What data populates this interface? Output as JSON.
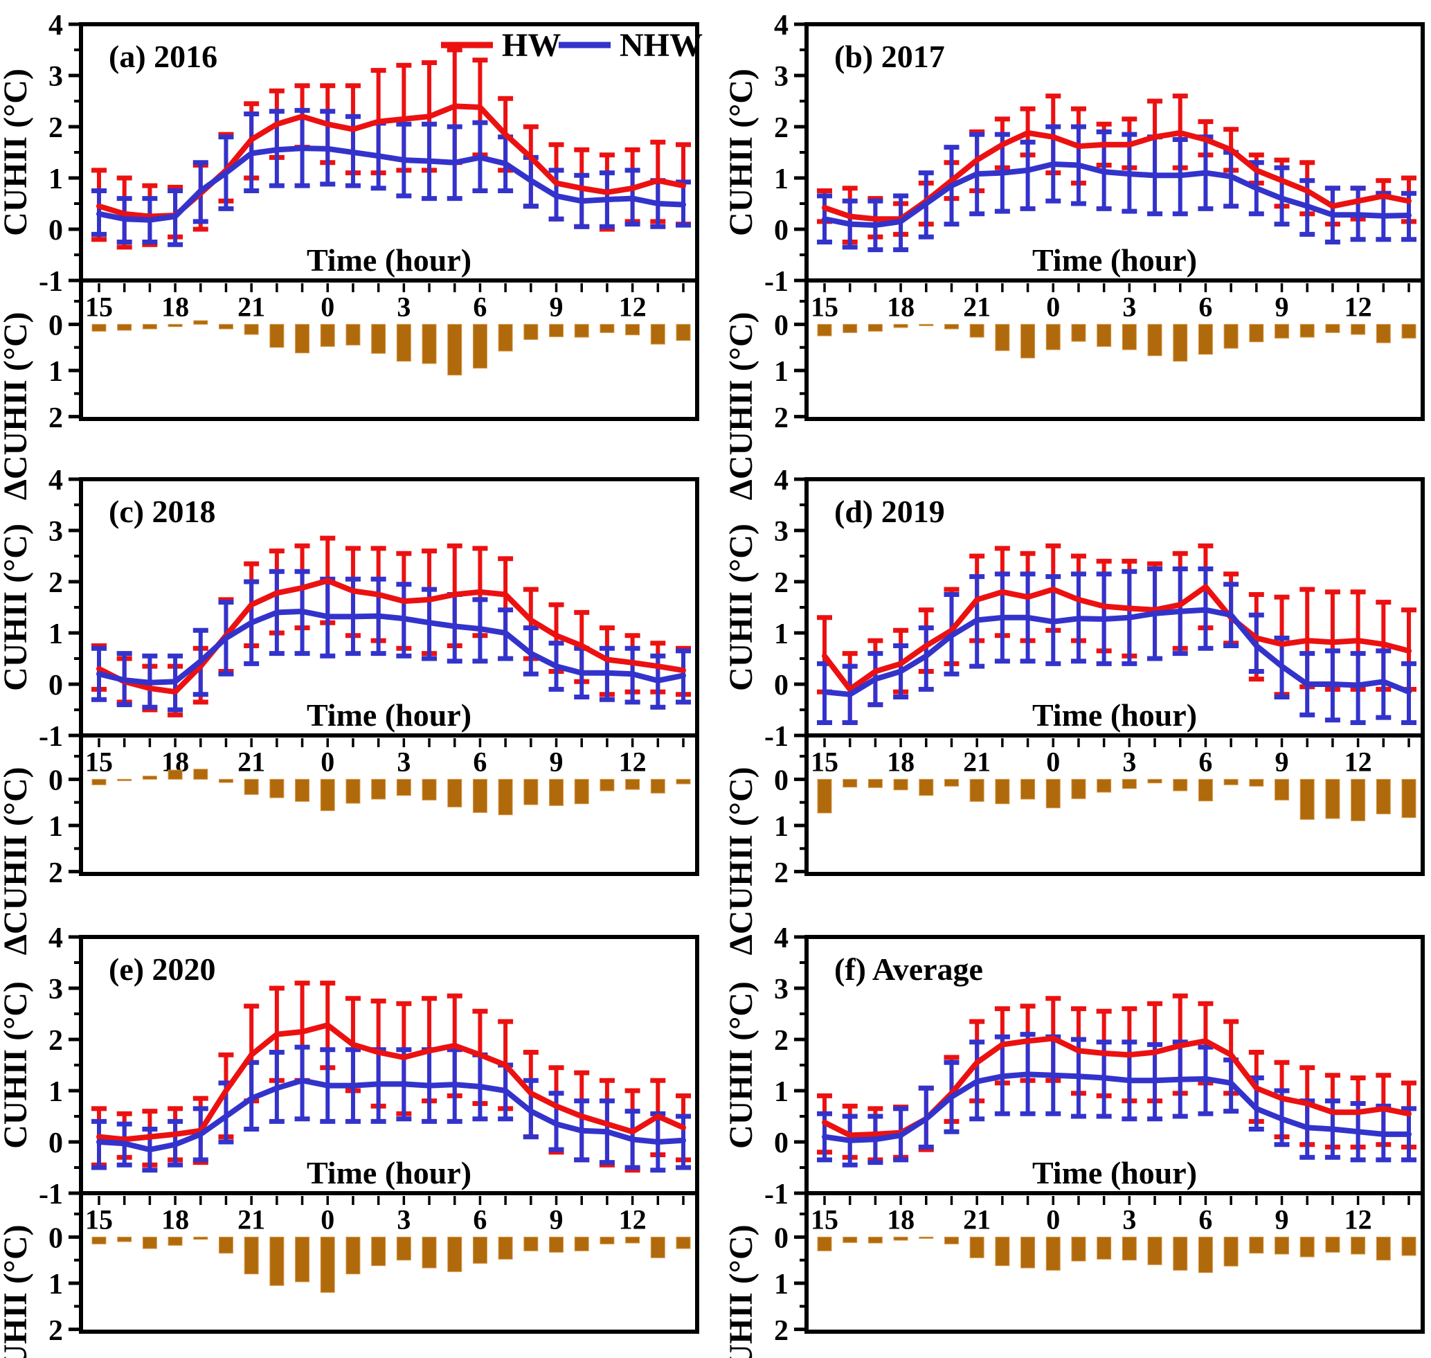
{
  "chart_data": {
    "type": "line",
    "description": "Six-panel figure: diurnal cycle of canopy urban heat island intensity (CUHII) during heat waves (HW) vs non-heat-waves (NHW) with error bars (top of each panel), and the difference ΔCUHII shown as downward bars on an inverted axis (bottom of each panel).",
    "xlabel": "Time (hour)",
    "top_ylabel": "CUHII (°C)",
    "bottom_ylabel": "ΔCUHII (°C)",
    "hours": [
      15,
      16,
      17,
      18,
      19,
      20,
      21,
      22,
      23,
      0,
      1,
      2,
      3,
      4,
      5,
      6,
      7,
      8,
      9,
      10,
      11,
      12,
      13,
      14
    ],
    "xtick_labels": [
      "15",
      "18",
      "21",
      "0",
      "3",
      "6",
      "9",
      "12"
    ],
    "xtick_indices": [
      0,
      3,
      6,
      9,
      12,
      15,
      18,
      21
    ],
    "top_ylim": [
      -1,
      4
    ],
    "top_yticks_major": [
      4,
      3,
      2,
      1,
      0,
      -1
    ],
    "top_yticks_minor": [
      3.5,
      2.5,
      1.5,
      0.5,
      -0.5
    ],
    "bottom_ylim": [
      -0.95,
      2.05
    ],
    "bottom_yticks_major": [
      0,
      1,
      2
    ],
    "bottom_yticks_minor": [
      -0.5,
      0.5,
      1.5
    ],
    "grid": false,
    "legend": {
      "hw_label": "HW",
      "nhw_label": "NHW",
      "position": "top-right of panel (a)"
    },
    "colors": {
      "hw": "#EC1111",
      "nhw": "#3333CC",
      "bar": "#B06A0B",
      "bar_edge": "#D9984A",
      "axis": "#000000",
      "background": "#FFFFFF"
    },
    "panels": [
      {
        "id": "a",
        "label": "(a) 2016",
        "has_legend": true,
        "hw": [
          0.45,
          0.3,
          0.25,
          0.27,
          0.7,
          1.15,
          1.75,
          2.05,
          2.2,
          2.05,
          1.95,
          2.1,
          2.15,
          2.2,
          2.4,
          2.38,
          1.85,
          1.4,
          0.9,
          0.8,
          0.72,
          0.8,
          0.95,
          0.85
        ],
        "hw_hi": [
          1.15,
          1.0,
          0.85,
          0.82,
          1.25,
          1.85,
          2.45,
          2.7,
          2.8,
          2.8,
          2.8,
          3.1,
          3.2,
          3.25,
          3.5,
          3.3,
          2.55,
          2.0,
          1.65,
          1.55,
          1.45,
          1.55,
          1.7,
          1.65
        ],
        "hw_lo": [
          -0.2,
          -0.35,
          -0.3,
          -0.15,
          0.0,
          0.55,
          1.0,
          1.4,
          1.6,
          1.3,
          1.1,
          1.1,
          1.15,
          1.15,
          1.3,
          1.45,
          1.15,
          0.45,
          0.2,
          0.05,
          0.0,
          0.15,
          0.15,
          0.1
        ],
        "nhw": [
          0.3,
          0.2,
          0.18,
          0.25,
          0.75,
          1.1,
          1.48,
          1.55,
          1.58,
          1.57,
          1.5,
          1.43,
          1.35,
          1.33,
          1.3,
          1.4,
          1.28,
          0.95,
          0.65,
          0.55,
          0.58,
          0.6,
          0.5,
          0.48
        ],
        "nhw_hi": [
          0.75,
          0.6,
          0.6,
          0.75,
          1.3,
          1.8,
          2.25,
          2.3,
          2.32,
          2.3,
          2.2,
          2.07,
          2.05,
          2.05,
          2.0,
          2.08,
          1.8,
          1.4,
          1.15,
          1.05,
          1.1,
          1.15,
          0.95,
          0.92
        ],
        "nhw_lo": [
          -0.1,
          -0.25,
          -0.25,
          -0.3,
          0.15,
          0.4,
          0.75,
          0.85,
          0.85,
          0.88,
          0.85,
          0.8,
          0.65,
          0.6,
          0.6,
          0.75,
          0.75,
          0.45,
          0.2,
          0.05,
          0.05,
          0.1,
          0.05,
          0.08
        ],
        "delta": [
          0.15,
          0.13,
          0.1,
          0.05,
          -0.08,
          0.1,
          0.22,
          0.5,
          0.62,
          0.48,
          0.45,
          0.63,
          0.8,
          0.85,
          1.1,
          0.95,
          0.58,
          0.33,
          0.27,
          0.28,
          0.18,
          0.23,
          0.43,
          0.35
        ]
      },
      {
        "id": "b",
        "label": "(b) 2017",
        "has_legend": false,
        "hw": [
          0.42,
          0.25,
          0.2,
          0.2,
          0.55,
          0.95,
          1.35,
          1.65,
          1.88,
          1.8,
          1.62,
          1.65,
          1.65,
          1.8,
          1.88,
          1.75,
          1.55,
          1.15,
          0.95,
          0.75,
          0.45,
          0.55,
          0.65,
          0.55
        ],
        "hw_hi": [
          0.75,
          0.8,
          0.6,
          0.5,
          0.9,
          1.3,
          1.9,
          2.15,
          2.35,
          2.6,
          2.35,
          2.05,
          2.15,
          2.5,
          2.6,
          2.1,
          1.95,
          1.45,
          1.35,
          1.3,
          0.8,
          0.8,
          0.95,
          1.0
        ],
        "hw_lo": [
          0.15,
          -0.25,
          -0.15,
          -0.1,
          0.1,
          0.6,
          0.75,
          1.2,
          1.45,
          1.1,
          0.9,
          1.25,
          1.2,
          1.05,
          1.2,
          1.45,
          1.15,
          0.9,
          0.45,
          0.3,
          0.1,
          0.2,
          0.7,
          0.15
        ],
        "nhw": [
          0.2,
          0.1,
          0.08,
          0.15,
          0.5,
          0.85,
          1.08,
          1.1,
          1.15,
          1.27,
          1.25,
          1.12,
          1.08,
          1.05,
          1.05,
          1.1,
          1.03,
          0.8,
          0.6,
          0.45,
          0.28,
          0.28,
          0.26,
          0.27
        ],
        "nhw_hi": [
          0.65,
          0.55,
          0.55,
          0.65,
          1.1,
          1.6,
          1.85,
          1.85,
          1.7,
          2.0,
          2.0,
          1.9,
          1.85,
          1.8,
          1.75,
          1.8,
          1.5,
          1.3,
          1.2,
          0.95,
          0.8,
          0.8,
          0.7,
          0.7
        ],
        "nhw_lo": [
          -0.25,
          -0.35,
          -0.4,
          -0.4,
          -0.15,
          0.1,
          0.3,
          0.35,
          0.4,
          0.55,
          0.5,
          0.4,
          0.35,
          0.3,
          0.3,
          0.4,
          0.45,
          0.3,
          0.1,
          -0.1,
          -0.25,
          -0.2,
          -0.2,
          -0.2
        ],
        "delta": [
          0.25,
          0.18,
          0.15,
          0.07,
          0.02,
          0.1,
          0.28,
          0.57,
          0.73,
          0.55,
          0.37,
          0.48,
          0.55,
          0.68,
          0.8,
          0.65,
          0.52,
          0.38,
          0.3,
          0.28,
          0.18,
          0.22,
          0.4,
          0.3
        ]
      },
      {
        "id": "c",
        "label": "(c) 2018",
        "has_legend": false,
        "hw": [
          0.3,
          0.05,
          -0.08,
          -0.15,
          0.35,
          0.95,
          1.55,
          1.78,
          1.88,
          2.02,
          1.82,
          1.75,
          1.62,
          1.65,
          1.75,
          1.8,
          1.75,
          1.25,
          0.95,
          0.75,
          0.48,
          0.42,
          0.35,
          0.27
        ],
        "hw_hi": [
          0.75,
          0.5,
          0.35,
          0.35,
          0.7,
          1.65,
          2.35,
          2.6,
          2.7,
          2.85,
          2.65,
          2.65,
          2.55,
          2.6,
          2.7,
          2.65,
          2.45,
          1.85,
          1.55,
          1.4,
          1.1,
          0.95,
          0.8,
          0.7
        ],
        "hw_lo": [
          -0.1,
          -0.35,
          -0.5,
          -0.6,
          -0.35,
          0.25,
          0.75,
          1.0,
          1.1,
          1.2,
          0.95,
          0.85,
          0.7,
          0.6,
          0.75,
          0.95,
          0.5,
          0.5,
          0.25,
          0.05,
          -0.2,
          -0.15,
          -0.15,
          -0.2
        ],
        "nhw": [
          0.2,
          0.08,
          0.03,
          0.05,
          0.45,
          0.9,
          1.2,
          1.4,
          1.42,
          1.32,
          1.32,
          1.33,
          1.28,
          1.2,
          1.13,
          1.08,
          1.0,
          0.6,
          0.35,
          0.22,
          0.22,
          0.2,
          0.07,
          0.17
        ],
        "nhw_hi": [
          0.7,
          0.6,
          0.55,
          0.55,
          1.05,
          1.6,
          2.0,
          2.2,
          2.2,
          2.05,
          2.05,
          2.05,
          1.95,
          1.85,
          1.75,
          1.65,
          1.45,
          1.1,
          0.8,
          0.7,
          0.7,
          0.7,
          0.55,
          0.65
        ],
        "nhw_lo": [
          -0.3,
          -0.4,
          -0.45,
          -0.5,
          -0.2,
          0.2,
          0.4,
          0.6,
          0.6,
          0.55,
          0.6,
          0.6,
          0.55,
          0.5,
          0.45,
          0.45,
          0.5,
          0.2,
          -0.1,
          -0.25,
          -0.3,
          -0.35,
          -0.45,
          -0.35
        ],
        "delta": [
          0.12,
          0.02,
          -0.07,
          -0.2,
          -0.22,
          0.07,
          0.33,
          0.4,
          0.48,
          0.68,
          0.52,
          0.43,
          0.35,
          0.45,
          0.6,
          0.72,
          0.77,
          0.55,
          0.57,
          0.53,
          0.25,
          0.22,
          0.3,
          0.1
        ]
      },
      {
        "id": "d",
        "label": "(d) 2019",
        "has_legend": false,
        "hw": [
          0.55,
          -0.1,
          0.25,
          0.4,
          0.75,
          1.05,
          1.65,
          1.8,
          1.7,
          1.85,
          1.65,
          1.52,
          1.48,
          1.45,
          1.55,
          1.9,
          1.3,
          0.9,
          0.78,
          0.85,
          0.82,
          0.85,
          0.78,
          0.65
        ],
        "hw_hi": [
          1.3,
          0.6,
          0.85,
          1.05,
          1.45,
          1.85,
          2.5,
          2.65,
          2.55,
          2.7,
          2.5,
          2.4,
          2.4,
          2.35,
          2.55,
          2.7,
          2.15,
          1.75,
          1.7,
          1.85,
          1.8,
          1.8,
          1.6,
          1.45
        ],
        "hw_lo": [
          -0.15,
          -0.75,
          -0.4,
          -0.15,
          0.25,
          0.4,
          0.85,
          0.95,
          0.85,
          1.05,
          0.85,
          0.65,
          0.55,
          0.5,
          0.7,
          1.1,
          0.8,
          0.1,
          -0.2,
          -0.05,
          -0.1,
          -0.1,
          -0.1,
          -0.1
        ],
        "nhw": [
          -0.15,
          -0.2,
          0.1,
          0.25,
          0.55,
          0.95,
          1.25,
          1.3,
          1.3,
          1.22,
          1.28,
          1.27,
          1.3,
          1.38,
          1.42,
          1.45,
          1.35,
          0.75,
          0.35,
          0.0,
          0.0,
          -0.02,
          0.05,
          -0.15
        ],
        "nhw_hi": [
          0.4,
          0.35,
          0.6,
          0.75,
          1.1,
          1.75,
          2.1,
          2.15,
          2.15,
          2.1,
          2.15,
          2.15,
          2.2,
          2.25,
          2.25,
          2.25,
          1.95,
          1.35,
          0.9,
          0.6,
          0.65,
          0.6,
          0.65,
          0.4
        ],
        "nhw_lo": [
          -0.75,
          -0.75,
          -0.4,
          -0.25,
          -0.1,
          0.2,
          0.35,
          0.45,
          0.45,
          0.4,
          0.45,
          0.4,
          0.4,
          0.5,
          0.6,
          0.7,
          0.75,
          0.25,
          -0.25,
          -0.6,
          -0.7,
          -0.75,
          -0.65,
          -0.75
        ],
        "delta": [
          0.73,
          0.17,
          0.18,
          0.23,
          0.35,
          0.15,
          0.48,
          0.53,
          0.43,
          0.62,
          0.42,
          0.28,
          0.2,
          0.08,
          0.25,
          0.47,
          0.12,
          0.15,
          0.45,
          0.87,
          0.85,
          0.9,
          0.75,
          0.83
        ]
      },
      {
        "id": "e",
        "label": "(e) 2020",
        "has_legend": false,
        "hw": [
          0.1,
          0.05,
          0.1,
          0.15,
          0.22,
          1.0,
          1.7,
          2.1,
          2.15,
          2.28,
          1.9,
          1.75,
          1.65,
          1.78,
          1.88,
          1.7,
          1.5,
          0.95,
          0.7,
          0.5,
          0.35,
          0.2,
          0.5,
          0.28
        ],
        "hw_hi": [
          0.65,
          0.55,
          0.6,
          0.65,
          0.85,
          1.7,
          2.65,
          3.0,
          3.1,
          3.1,
          2.8,
          2.75,
          2.7,
          2.8,
          2.85,
          2.55,
          2.35,
          1.75,
          1.45,
          1.35,
          1.2,
          1.0,
          1.2,
          0.9
        ],
        "hw_lo": [
          -0.45,
          -0.3,
          -0.45,
          -0.35,
          -0.4,
          0.1,
          0.8,
          1.2,
          1.2,
          1.45,
          1.0,
          0.7,
          0.55,
          0.8,
          0.9,
          0.75,
          0.65,
          0.1,
          -0.2,
          -0.35,
          -0.45,
          -0.55,
          -0.25,
          -0.35
        ],
        "nhw": [
          0.0,
          -0.03,
          -0.15,
          -0.05,
          0.15,
          0.5,
          0.85,
          1.05,
          1.2,
          1.1,
          1.1,
          1.13,
          1.13,
          1.1,
          1.12,
          1.08,
          1.0,
          0.6,
          0.35,
          0.22,
          0.2,
          0.05,
          0.0,
          0.03
        ],
        "nhw_hi": [
          0.4,
          0.35,
          0.25,
          0.4,
          0.65,
          1.15,
          1.55,
          1.75,
          1.85,
          1.8,
          1.8,
          1.8,
          1.8,
          1.8,
          1.8,
          1.7,
          1.5,
          1.2,
          0.95,
          0.8,
          0.8,
          0.6,
          0.55,
          0.5
        ],
        "nhw_lo": [
          -0.5,
          -0.45,
          -0.55,
          -0.45,
          -0.35,
          0.0,
          0.25,
          0.4,
          0.45,
          0.4,
          0.4,
          0.4,
          0.45,
          0.4,
          0.4,
          0.45,
          0.45,
          0.1,
          -0.15,
          -0.35,
          -0.4,
          -0.5,
          -0.55,
          -0.5
        ],
        "delta": [
          0.15,
          0.1,
          0.25,
          0.18,
          0.05,
          0.35,
          0.8,
          1.05,
          0.97,
          1.2,
          0.8,
          0.62,
          0.5,
          0.67,
          0.75,
          0.57,
          0.48,
          0.3,
          0.33,
          0.3,
          0.15,
          0.13,
          0.45,
          0.25
        ]
      },
      {
        "id": "f",
        "label": "(f) Average",
        "has_legend": false,
        "hw": [
          0.38,
          0.13,
          0.15,
          0.18,
          0.45,
          0.95,
          1.55,
          1.9,
          1.97,
          2.02,
          1.78,
          1.73,
          1.7,
          1.75,
          1.88,
          1.97,
          1.7,
          1.05,
          0.85,
          0.75,
          0.58,
          0.58,
          0.65,
          0.55
        ],
        "hw_hi": [
          0.9,
          0.7,
          0.65,
          0.68,
          1.05,
          1.65,
          2.35,
          2.6,
          2.65,
          2.8,
          2.6,
          2.55,
          2.6,
          2.7,
          2.85,
          2.7,
          2.35,
          1.75,
          1.55,
          1.45,
          1.3,
          1.25,
          1.3,
          1.15
        ],
        "hw_lo": [
          -0.2,
          -0.3,
          -0.35,
          -0.3,
          -0.15,
          0.4,
          0.8,
          1.15,
          1.2,
          1.2,
          0.95,
          0.9,
          0.8,
          0.8,
          0.95,
          1.15,
          0.95,
          0.4,
          0.1,
          -0.05,
          -0.1,
          -0.1,
          -0.05,
          -0.1
        ],
        "nhw": [
          0.1,
          0.03,
          0.05,
          0.13,
          0.45,
          0.88,
          1.18,
          1.28,
          1.32,
          1.3,
          1.28,
          1.25,
          1.2,
          1.2,
          1.22,
          1.23,
          1.15,
          0.65,
          0.45,
          0.28,
          0.25,
          0.2,
          0.15,
          0.15
        ],
        "nhw_hi": [
          0.55,
          0.5,
          0.5,
          0.65,
          1.05,
          1.55,
          1.95,
          2.05,
          2.1,
          2.05,
          2.0,
          1.95,
          1.95,
          1.9,
          1.95,
          1.85,
          1.6,
          1.25,
          1.0,
          0.8,
          0.8,
          0.75,
          0.7,
          0.65
        ],
        "nhw_lo": [
          -0.35,
          -0.45,
          -0.4,
          -0.35,
          -0.1,
          0.2,
          0.45,
          0.55,
          0.55,
          0.55,
          0.5,
          0.5,
          0.45,
          0.45,
          0.5,
          0.55,
          0.6,
          0.25,
          -0.05,
          -0.3,
          -0.3,
          -0.35,
          -0.35,
          -0.35
        ],
        "delta": [
          0.3,
          0.12,
          0.13,
          0.07,
          0.02,
          0.15,
          0.45,
          0.62,
          0.67,
          0.72,
          0.52,
          0.48,
          0.5,
          0.6,
          0.72,
          0.77,
          0.63,
          0.35,
          0.37,
          0.43,
          0.33,
          0.37,
          0.5,
          0.4
        ]
      }
    ]
  }
}
